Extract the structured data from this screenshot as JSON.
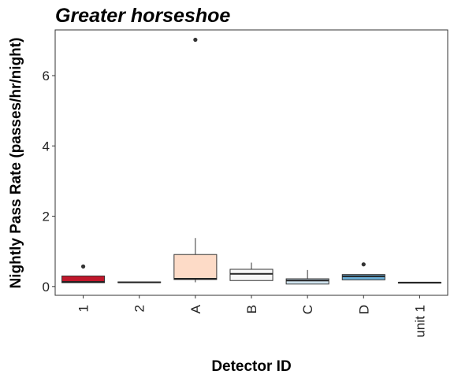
{
  "chart_data": {
    "type": "box",
    "title": "Greater horseshoe",
    "xlabel": "Detector ID",
    "ylabel": "Nightly Pass Rate (passes/hr/night)",
    "ylim": [
      -0.25,
      7.3
    ],
    "yticks": [
      0,
      2,
      4,
      6
    ],
    "grid": false,
    "legend": "none",
    "categories": [
      "1",
      "2",
      "A",
      "B",
      "C",
      "D",
      "unit 1"
    ],
    "boxes": [
      {
        "label": "1",
        "q1": 0.11,
        "median": 0.13,
        "q3": 0.3,
        "whisker_low": 0.11,
        "whisker_high": 0.3,
        "outliers": [
          0.57
        ],
        "fill": "#c0172b"
      },
      {
        "label": "2",
        "q1": 0.12,
        "median": 0.12,
        "q3": 0.13,
        "whisker_low": 0.12,
        "whisker_high": 0.13,
        "outliers": [],
        "fill": "#e5a98a"
      },
      {
        "label": "A",
        "q1": 0.2,
        "median": 0.22,
        "q3": 0.91,
        "whisker_low": 0.12,
        "whisker_high": 1.38,
        "outliers": [
          7.02
        ],
        "fill": "#fddbc7"
      },
      {
        "label": "B",
        "q1": 0.17,
        "median": 0.36,
        "q3": 0.49,
        "whisker_low": 0.17,
        "whisker_high": 0.68,
        "outliers": [],
        "fill": "#f7f7f7"
      },
      {
        "label": "C",
        "q1": 0.07,
        "median": 0.17,
        "q3": 0.22,
        "whisker_low": 0.07,
        "whisker_high": 0.47,
        "outliers": [],
        "fill": "#d1e5f0"
      },
      {
        "label": "D",
        "q1": 0.19,
        "median": 0.29,
        "q3": 0.34,
        "whisker_low": 0.19,
        "whisker_high": 0.34,
        "outliers": [
          0.63
        ],
        "fill": "#6aaed6"
      },
      {
        "label": "unit 1",
        "q1": 0.1,
        "median": 0.11,
        "q3": 0.12,
        "whisker_low": 0.1,
        "whisker_high": 0.12,
        "outliers": [],
        "fill": "#2c7bb6"
      }
    ]
  }
}
